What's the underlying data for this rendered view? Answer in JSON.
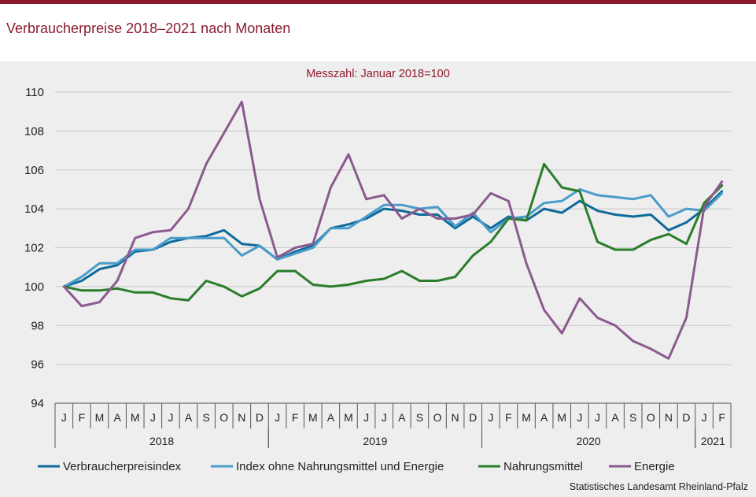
{
  "title": "Verbraucherpreise 2018–2021 nach Monaten",
  "source": "Statistisches Landesamt Rheinland-Pfalz",
  "colors": {
    "brand": "#8b1a2c"
  },
  "chart_data": {
    "type": "line",
    "subtitle": "Messzahl:  Januar  2018=100",
    "ylim": [
      94,
      110
    ],
    "yticks": [
      94,
      96,
      98,
      100,
      102,
      104,
      106,
      108,
      110
    ],
    "grid": "horizontal",
    "legend_position": "bottom",
    "months": [
      "J",
      "F",
      "M",
      "A",
      "M",
      "J",
      "J",
      "A",
      "S",
      "O",
      "N",
      "D",
      "J",
      "F",
      "M",
      "A",
      "M",
      "J",
      "J",
      "A",
      "S",
      "O",
      "N",
      "D",
      "J",
      "F",
      "M",
      "A",
      "M",
      "J",
      "J",
      "A",
      "S",
      "O",
      "N",
      "D",
      "J",
      "F"
    ],
    "years": [
      {
        "label": "2018",
        "months": 12
      },
      {
        "label": "2019",
        "months": 12
      },
      {
        "label": "2020",
        "months": 12
      },
      {
        "label": "2021",
        "months": 2
      }
    ],
    "series": [
      {
        "name": "Verbraucherpreisindex",
        "color": "#0e6a9a",
        "values": [
          100.0,
          100.3,
          100.9,
          101.1,
          101.8,
          101.9,
          102.3,
          102.5,
          102.6,
          102.9,
          102.2,
          102.1,
          101.4,
          101.8,
          102.1,
          103.0,
          103.2,
          103.5,
          104.0,
          103.9,
          103.7,
          103.7,
          103.0,
          103.6,
          103.0,
          103.6,
          103.4,
          104.0,
          103.8,
          104.4,
          103.9,
          103.7,
          103.6,
          103.7,
          102.9,
          103.3,
          104.0,
          104.9
        ]
      },
      {
        "name": "Index ohne Nahrungsmittel und Energie",
        "color": "#4a9cc9",
        "values": [
          100.0,
          100.5,
          101.2,
          101.2,
          101.9,
          101.9,
          102.5,
          102.5,
          102.5,
          102.5,
          101.6,
          102.1,
          101.4,
          101.7,
          102.0,
          103.0,
          103.0,
          103.6,
          104.2,
          104.2,
          104.0,
          104.1,
          103.1,
          103.8,
          102.8,
          103.5,
          103.6,
          104.3,
          104.4,
          105.0,
          104.7,
          104.6,
          104.5,
          104.7,
          103.6,
          104.0,
          103.9,
          104.8
        ]
      },
      {
        "name": "Nahrungsmittel",
        "color": "#2a7d2a",
        "values": [
          100.0,
          99.8,
          99.8,
          99.9,
          99.7,
          99.7,
          99.4,
          99.3,
          100.3,
          100.0,
          99.5,
          99.9,
          100.8,
          100.8,
          100.1,
          100.0,
          100.1,
          100.3,
          100.4,
          100.8,
          100.3,
          100.3,
          100.5,
          101.6,
          102.3,
          103.5,
          103.4,
          106.3,
          105.1,
          104.9,
          102.3,
          101.9,
          101.9,
          102.4,
          102.7,
          102.2,
          104.3,
          105.2
        ]
      },
      {
        "name": "Energie",
        "color": "#8b5a8f",
        "values": [
          100.0,
          99.0,
          99.2,
          100.3,
          102.5,
          102.8,
          102.9,
          104.0,
          106.3,
          107.9,
          109.5,
          104.5,
          101.5,
          102.0,
          102.2,
          105.1,
          106.8,
          104.5,
          104.7,
          103.5,
          104.0,
          103.5,
          103.5,
          103.7,
          104.8,
          104.4,
          101.2,
          98.8,
          97.6,
          99.4,
          98.4,
          98.0,
          97.2,
          96.8,
          96.3,
          98.4,
          104.1,
          105.4
        ]
      }
    ]
  }
}
